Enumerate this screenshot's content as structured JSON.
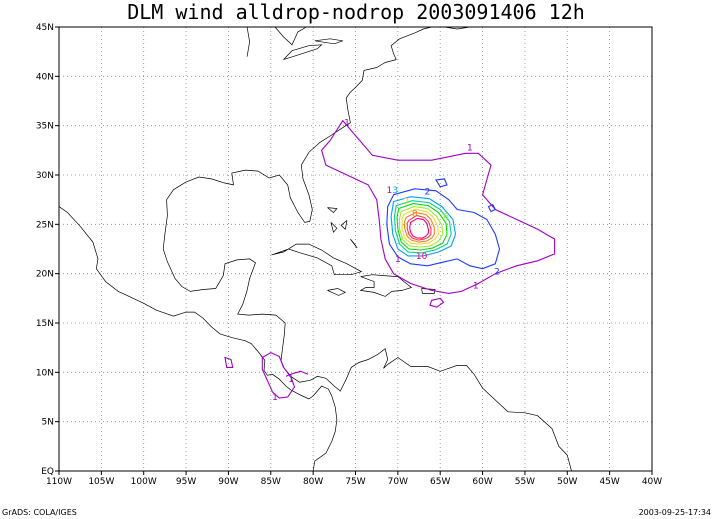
{
  "title": "DLM wind alldrop-nodrop 2003091406 12h",
  "footer_left": "GrADS: COLA/IGES",
  "footer_right": "2003-09-25-17:34",
  "map": {
    "lon_range": [
      -110,
      -40
    ],
    "lat_range": [
      0,
      45
    ],
    "grid": true,
    "y_ticks": [
      {
        "label": "EQ",
        "lat": 0
      },
      {
        "label": "5N",
        "lat": 5
      },
      {
        "label": "10N",
        "lat": 10
      },
      {
        "label": "15N",
        "lat": 15
      },
      {
        "label": "20N",
        "lat": 20
      },
      {
        "label": "25N",
        "lat": 25
      },
      {
        "label": "30N",
        "lat": 30
      },
      {
        "label": "35N",
        "lat": 35
      },
      {
        "label": "40N",
        "lat": 40
      },
      {
        "label": "45N",
        "lat": 45
      }
    ],
    "x_ticks": [
      {
        "label": "110W",
        "lon": -110
      },
      {
        "label": "105W",
        "lon": -105
      },
      {
        "label": "100W",
        "lon": -100
      },
      {
        "label": "95W",
        "lon": -95
      },
      {
        "label": "90W",
        "lon": -90
      },
      {
        "label": "85W",
        "lon": -85
      },
      {
        "label": "80W",
        "lon": -80
      },
      {
        "label": "75W",
        "lon": -75
      },
      {
        "label": "70W",
        "lon": -70
      },
      {
        "label": "65W",
        "lon": -65
      },
      {
        "label": "60W",
        "lon": -60
      },
      {
        "label": "55W",
        "lon": -55
      },
      {
        "label": "50W",
        "lon": -50
      },
      {
        "label": "45W",
        "lon": -45
      },
      {
        "label": "40W",
        "lon": -40
      }
    ],
    "contour_levels": [
      {
        "value": 1,
        "color": "#a000c8"
      },
      {
        "value": 2,
        "color": "#1e3cff"
      },
      {
        "value": 3,
        "color": "#00a0ff"
      },
      {
        "value": 4,
        "color": "#00d28c"
      },
      {
        "value": 5,
        "color": "#00dc00"
      },
      {
        "value": 6,
        "color": "#a0e632"
      },
      {
        "value": 7,
        "color": "#e6dc32"
      },
      {
        "value": 8,
        "color": "#f08228"
      },
      {
        "value": 9,
        "color": "#fa3c3c"
      },
      {
        "value": 10,
        "color": "#f00082"
      }
    ],
    "contour_labels": [
      {
        "text": "1",
        "lon": -76,
        "lat": 35,
        "level": 1
      },
      {
        "text": "1",
        "lon": -61.5,
        "lat": 32.5,
        "level": 1
      },
      {
        "text": "1",
        "lon": -71,
        "lat": 28.2,
        "level": 1
      },
      {
        "text": "3",
        "lon": -70.3,
        "lat": 28.2,
        "level": 3
      },
      {
        "text": "2",
        "lon": -66.5,
        "lat": 28.0,
        "level": 2
      },
      {
        "text": "7",
        "lon": -69,
        "lat": 27.0,
        "level": 7
      },
      {
        "text": "8",
        "lon": -68.0,
        "lat": 25.8,
        "level": 8
      },
      {
        "text": "6",
        "lon": -64.3,
        "lat": 25.5,
        "level": 6
      },
      {
        "text": "1",
        "lon": -70,
        "lat": 21.2,
        "level": 1
      },
      {
        "text": "10",
        "lon": -67.2,
        "lat": 21.5,
        "level": 10
      },
      {
        "text": "2",
        "lon": -58.3,
        "lat": 19.9,
        "level": 2
      },
      {
        "text": "1",
        "lon": -60.8,
        "lat": 18.5,
        "level": 1
      },
      {
        "text": "1",
        "lon": -84.5,
        "lat": 7.2,
        "level": 1
      },
      {
        "text": "1",
        "lon": -82.6,
        "lat": 9.0,
        "level": 1
      }
    ]
  }
}
